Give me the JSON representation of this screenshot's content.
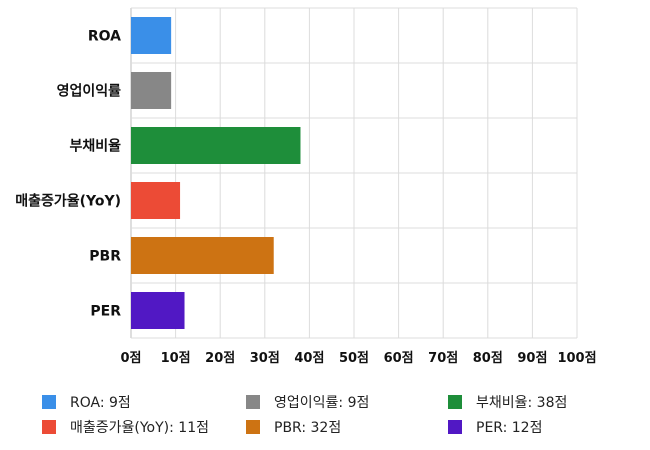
{
  "chart_data": {
    "type": "bar",
    "orientation": "horizontal",
    "categories": [
      "ROA",
      "영업이익률",
      "부채비율",
      "매출증가율(YoY)",
      "PBR",
      "PER"
    ],
    "values": [
      9,
      9,
      38,
      11,
      32,
      12
    ],
    "colors": [
      "#3a8fe8",
      "#878787",
      "#1e8e3a",
      "#ec4b36",
      "#cd7313",
      "#5118c4"
    ],
    "xlim": [
      0,
      100
    ],
    "x_ticks": [
      0,
      10,
      20,
      30,
      40,
      50,
      60,
      70,
      80,
      90,
      100
    ],
    "x_unit": "점",
    "grid": true,
    "legend_position": "bottom",
    "legend": [
      "ROA: 9점",
      "영업이익률: 9점",
      "부채비율: 38점",
      "매출증가율(YoY): 11점",
      "PBR: 32점",
      "PER: 12점"
    ]
  }
}
